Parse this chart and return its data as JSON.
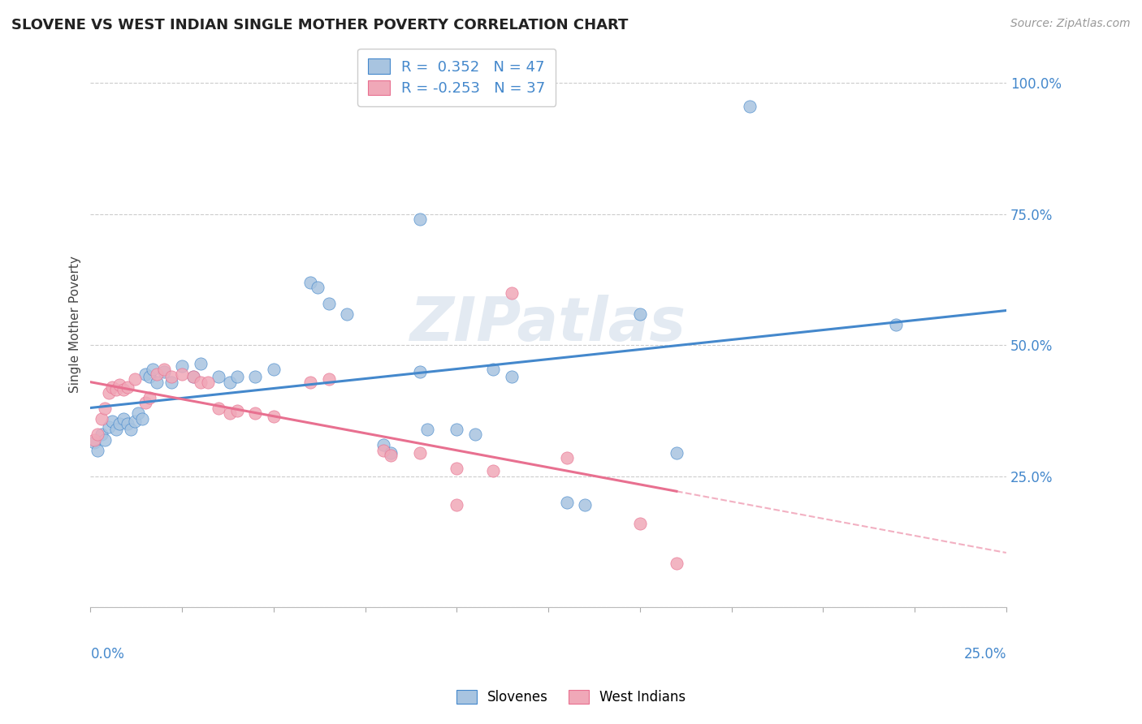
{
  "title": "SLOVENE VS WEST INDIAN SINGLE MOTHER POVERTY CORRELATION CHART",
  "source": "Source: ZipAtlas.com",
  "ylabel": "Single Mother Poverty",
  "ytick_vals": [
    0.0,
    0.25,
    0.5,
    0.75,
    1.0
  ],
  "ytick_labels": [
    "",
    "25.0%",
    "50.0%",
    "75.0%",
    "100.0%"
  ],
  "xlim": [
    0.0,
    0.25
  ],
  "ylim": [
    0.0,
    1.08
  ],
  "watermark": "ZIPatlas",
  "blue_R": "0.352",
  "blue_N": "47",
  "pink_R": "-0.253",
  "pink_N": "37",
  "blue_fill": "#a8c4e0",
  "pink_fill": "#f0a8b8",
  "blue_edge": "#4488cc",
  "pink_edge": "#e87090",
  "blue_line": "#4488cc",
  "pink_line": "#e87090",
  "slovene_points": [
    [
      0.001,
      0.315
    ],
    [
      0.002,
      0.3
    ],
    [
      0.003,
      0.33
    ],
    [
      0.004,
      0.32
    ],
    [
      0.005,
      0.345
    ],
    [
      0.006,
      0.355
    ],
    [
      0.007,
      0.34
    ],
    [
      0.008,
      0.35
    ],
    [
      0.009,
      0.36
    ],
    [
      0.01,
      0.35
    ],
    [
      0.011,
      0.34
    ],
    [
      0.012,
      0.355
    ],
    [
      0.013,
      0.37
    ],
    [
      0.014,
      0.36
    ],
    [
      0.015,
      0.445
    ],
    [
      0.016,
      0.44
    ],
    [
      0.017,
      0.455
    ],
    [
      0.018,
      0.43
    ],
    [
      0.02,
      0.45
    ],
    [
      0.022,
      0.43
    ],
    [
      0.025,
      0.46
    ],
    [
      0.028,
      0.44
    ],
    [
      0.03,
      0.465
    ],
    [
      0.035,
      0.44
    ],
    [
      0.038,
      0.43
    ],
    [
      0.04,
      0.44
    ],
    [
      0.045,
      0.44
    ],
    [
      0.05,
      0.455
    ],
    [
      0.06,
      0.62
    ],
    [
      0.062,
      0.61
    ],
    [
      0.065,
      0.58
    ],
    [
      0.07,
      0.56
    ],
    [
      0.08,
      0.31
    ],
    [
      0.082,
      0.295
    ],
    [
      0.09,
      0.45
    ],
    [
      0.092,
      0.34
    ],
    [
      0.1,
      0.34
    ],
    [
      0.105,
      0.33
    ],
    [
      0.11,
      0.455
    ],
    [
      0.115,
      0.44
    ],
    [
      0.13,
      0.2
    ],
    [
      0.135,
      0.195
    ],
    [
      0.15,
      0.56
    ],
    [
      0.16,
      0.295
    ],
    [
      0.09,
      0.74
    ],
    [
      0.22,
      0.54
    ],
    [
      0.18,
      0.955
    ]
  ],
  "westindian_points": [
    [
      0.001,
      0.32
    ],
    [
      0.002,
      0.33
    ],
    [
      0.003,
      0.36
    ],
    [
      0.004,
      0.38
    ],
    [
      0.005,
      0.41
    ],
    [
      0.006,
      0.42
    ],
    [
      0.007,
      0.415
    ],
    [
      0.008,
      0.425
    ],
    [
      0.009,
      0.415
    ],
    [
      0.01,
      0.42
    ],
    [
      0.012,
      0.435
    ],
    [
      0.015,
      0.39
    ],
    [
      0.016,
      0.4
    ],
    [
      0.018,
      0.445
    ],
    [
      0.02,
      0.455
    ],
    [
      0.022,
      0.44
    ],
    [
      0.025,
      0.445
    ],
    [
      0.028,
      0.44
    ],
    [
      0.03,
      0.43
    ],
    [
      0.032,
      0.43
    ],
    [
      0.035,
      0.38
    ],
    [
      0.038,
      0.37
    ],
    [
      0.04,
      0.375
    ],
    [
      0.045,
      0.37
    ],
    [
      0.05,
      0.365
    ],
    [
      0.06,
      0.43
    ],
    [
      0.065,
      0.435
    ],
    [
      0.08,
      0.3
    ],
    [
      0.082,
      0.29
    ],
    [
      0.09,
      0.295
    ],
    [
      0.1,
      0.265
    ],
    [
      0.11,
      0.26
    ],
    [
      0.115,
      0.6
    ],
    [
      0.13,
      0.285
    ],
    [
      0.15,
      0.16
    ],
    [
      0.16,
      0.085
    ],
    [
      0.1,
      0.195
    ]
  ]
}
